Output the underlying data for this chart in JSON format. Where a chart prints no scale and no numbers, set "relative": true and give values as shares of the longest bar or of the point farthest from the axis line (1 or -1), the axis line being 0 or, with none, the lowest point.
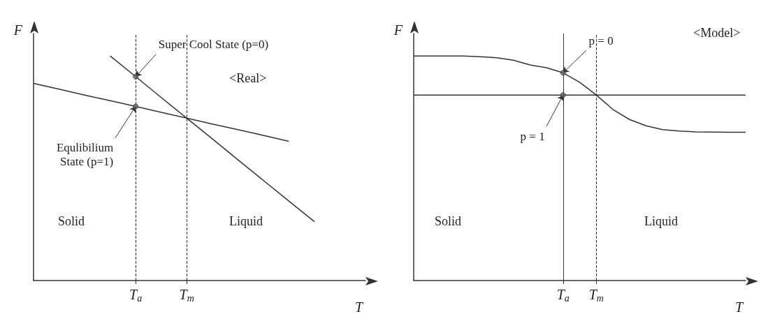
{
  "chart_data": [
    {
      "type": "line",
      "relative": true,
      "xlabel": "T",
      "ylabel": "F",
      "grid": false,
      "categories": [
        null,
        null,
        null,
        null,
        "T$_{a}$",
        null,
        "T$_{m}$",
        null,
        null,
        null,
        null,
        null,
        null,
        null
      ],
      "series": [
        {
          "color": "#333333",
          "values": [
            0.878,
            0.852,
            0.826,
            0.801,
            0.775,
            0.749,
            0.723,
            0.697,
            0.672,
            0.646,
            0.62,
            null,
            null,
            null
          ]
        },
        {
          "color": "#333333",
          "values": [
            null,
            null,
            null,
            1,
            0.908,
            0.815,
            0.723,
            0.631,
            0.538,
            0.446,
            0.354,
            0.262,
            null,
            null
          ]
        },
        {
          "type": "scatter",
          "color": "#666666",
          "x": [
            "T$_{a}$",
            "T$_{a}$"
          ],
          "values": [
            0.775,
            0.908
          ]
        }
      ],
      "ref_lines": [
        {
          "axis": "x",
          "value": "T$_{a}$",
          "line_style": "dashed"
        },
        {
          "axis": "x",
          "value": "T$_{m}$",
          "line_style": "dashed"
        }
      ],
      "annotations": [
        {
          "text": "Super Cool State (p=0)",
          "x": "T$_{a}$",
          "y": 0.908
        },
        {
          "text": "Equlibilium\nState (p=1)",
          "x": "T$_{a}$",
          "y": 0.775
        },
        "<Real>",
        "Solid",
        "Liquid"
      ]
    },
    {
      "type": "line",
      "relative": true,
      "xlabel": "T",
      "ylabel": "F",
      "grid": false,
      "categories": [
        null,
        null,
        null,
        null,
        null,
        null,
        null,
        null,
        null,
        "T$_{a}$",
        null,
        "T$_{m}$",
        null,
        null,
        null,
        null,
        null,
        null,
        null,
        null,
        null
      ],
      "series": [
        {
          "color": "#333333",
          "values": [
            0.826,
            0.826,
            0.826,
            0.826,
            0.826,
            0.826,
            0.826,
            0.826,
            0.826,
            0.826,
            0.826,
            0.826,
            0.826,
            0.826,
            0.826,
            0.826,
            0.826,
            0.826,
            0.826,
            0.826,
            0.826
          ]
        },
        {
          "color": "#333333",
          "values": [
            1,
            1,
            1,
            1,
            0.997,
            0.992,
            0.981,
            0.96,
            0.948,
            0.925,
            0.883,
            0.826,
            0.762,
            0.717,
            0.689,
            0.672,
            0.666,
            0.662,
            0.661,
            0.66,
            0.66
          ]
        },
        {
          "type": "scatter",
          "color": "#666666",
          "x": [
            "T$_{a}$",
            "T$_{a}$"
          ],
          "values": [
            0.925,
            0.826
          ]
        }
      ],
      "ref_lines": [
        {
          "axis": "x",
          "value": "T$_{a}$",
          "line_style": "solid"
        },
        {
          "axis": "x",
          "value": "T$_{m}$",
          "line_style": "dashed"
        }
      ],
      "annotations": [
        {
          "text": "p = 0",
          "x": "T$_{a}$",
          "y": 0.925
        },
        {
          "text": "p = 1",
          "x": "T$_{a}$",
          "y": 0.826
        },
        "<Model>",
        "Solid",
        "Liquid"
      ]
    }
  ]
}
